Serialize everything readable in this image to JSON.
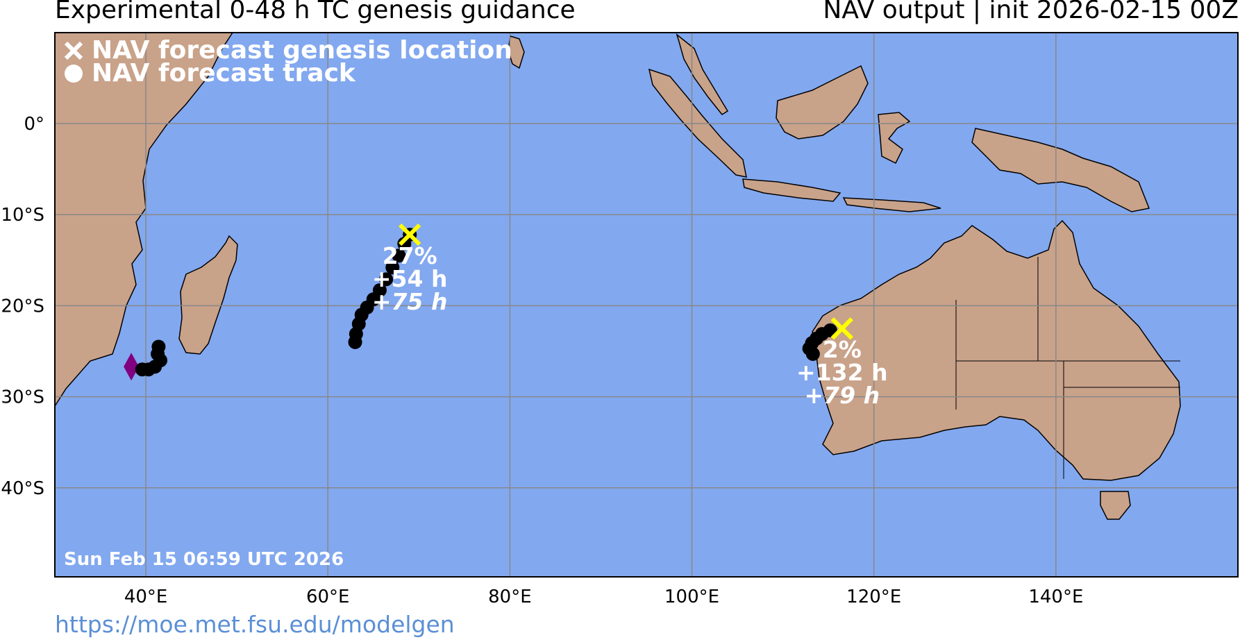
{
  "header": {
    "title_left": "Experimental 0-48 h TC genesis guidance",
    "title_right": "NAV output | init 2026-02-15 00Z"
  },
  "legend": {
    "genesis": {
      "icon": "x-icon",
      "label": "NAV forecast genesis location"
    },
    "track": {
      "icon": "circle-icon",
      "label": "NAV forecast track"
    }
  },
  "map": {
    "ocean_color": "#82a8ef",
    "land_color": "#c9a28a",
    "grid_color": "#888888",
    "genesis_color": "#ffff00",
    "track_color": "#000000",
    "tc_marker_color": "#800080",
    "lat_labels": [
      "0°",
      "10°S",
      "20°S",
      "30°S",
      "40°S"
    ],
    "lon_labels": [
      "40°E",
      "60°E",
      "80°E",
      "100°E",
      "120°E",
      "140°E"
    ],
    "timestamp": "Sun Feb 15 06:59 UTC 2026"
  },
  "systems": [
    {
      "genesis": {
        "lon": 69.0,
        "lat": -12.2
      },
      "probability": "27%",
      "lead": "+54 h",
      "duration": "+75 h",
      "track": [
        [
          69.0,
          -12.2
        ],
        [
          68.4,
          -13.2
        ],
        [
          67.8,
          -14.5
        ],
        [
          67.1,
          -15.8
        ],
        [
          66.4,
          -17.1
        ],
        [
          65.7,
          -18.3
        ],
        [
          65.0,
          -19.3
        ],
        [
          64.3,
          -20.2
        ],
        [
          63.7,
          -21.0
        ],
        [
          63.4,
          -22.0
        ],
        [
          63.1,
          -23.1
        ],
        [
          63.0,
          -24.0
        ]
      ]
    },
    {
      "genesis": {
        "lon": 116.5,
        "lat": -22.5
      },
      "probability": "2%",
      "lead": "+132 h",
      "duration": "+79 h",
      "track": [
        [
          115.2,
          -22.7
        ],
        [
          114.3,
          -23.1
        ],
        [
          113.7,
          -23.6
        ],
        [
          113.2,
          -24.1
        ],
        [
          112.9,
          -24.7
        ],
        [
          113.3,
          -25.3
        ]
      ]
    },
    {
      "track": [
        [
          39.6,
          -27.0
        ],
        [
          40.3,
          -27.0
        ],
        [
          41.0,
          -26.7
        ],
        [
          41.6,
          -26.0
        ],
        [
          41.3,
          -25.3
        ],
        [
          41.4,
          -24.5
        ]
      ]
    }
  ],
  "tc_marker": {
    "lon": 38.4,
    "lat": -26.7
  },
  "footer": {
    "url": "https://moe.met.fsu.edu/modelgen"
  }
}
